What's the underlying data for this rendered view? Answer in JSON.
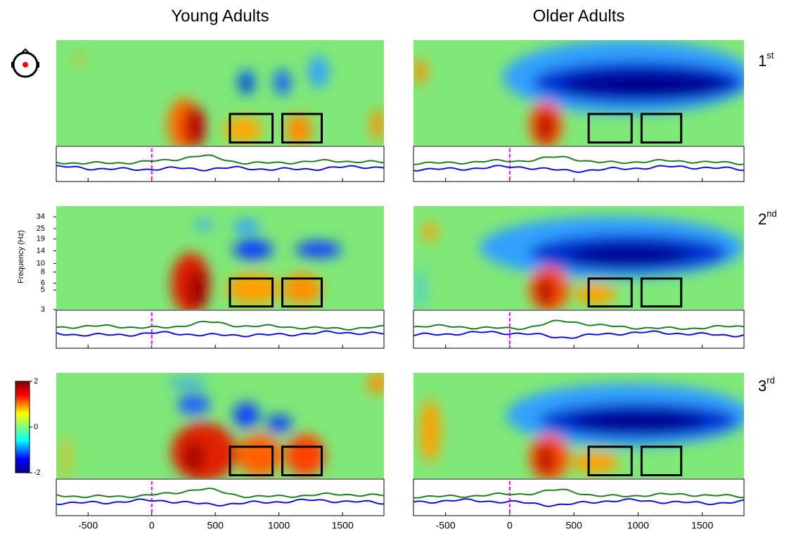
{
  "column_titles": [
    "Young Adults",
    "Older Adults"
  ],
  "row_labels": [
    {
      "number": "1",
      "suffix": "st"
    },
    {
      "number": "2",
      "suffix": "nd"
    },
    {
      "number": "3",
      "suffix": "rd"
    }
  ],
  "chart_data": {
    "type": "heatmap",
    "y_label": "Frequency (Hz)",
    "xlim": [
      -750,
      1825
    ],
    "xticks": [
      -500,
      0,
      500,
      1000,
      1500
    ],
    "ylim": [
      3,
      45
    ],
    "yticks": [
      3,
      5,
      6,
      8,
      10,
      14,
      19,
      25,
      34
    ],
    "log_scale": true,
    "colorbar": {
      "lim": [
        -2,
        2
      ],
      "ticks": [
        2,
        0,
        -2
      ]
    }
  }
}
